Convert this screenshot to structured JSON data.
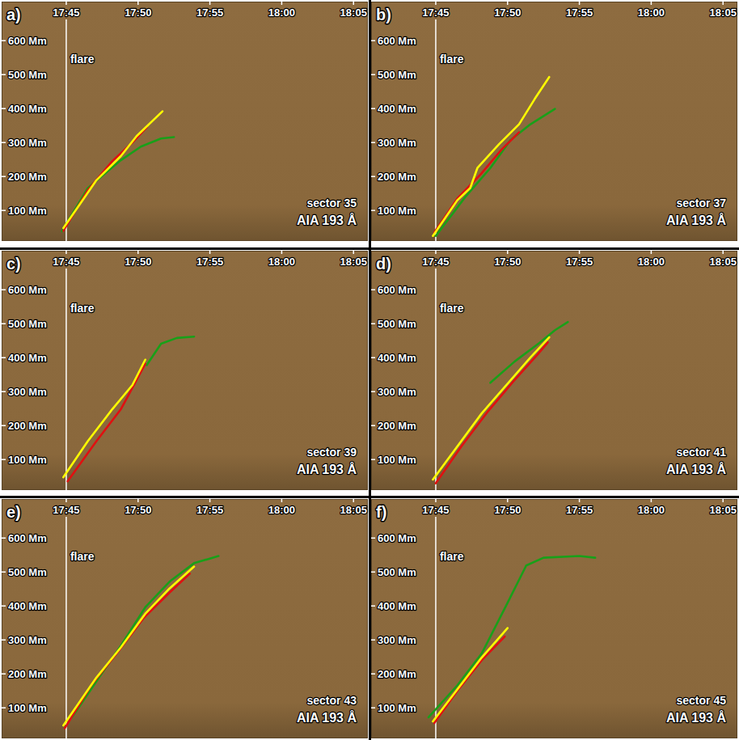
{
  "chart_data": [
    {
      "type": "line",
      "label": "a)",
      "title": "sector 35",
      "subtitle": "AIA 193 Å",
      "annotation": {
        "text": "flare",
        "x": 45
      },
      "xlim": [
        40.5,
        66
      ],
      "ylim": [
        10,
        715
      ],
      "xticks": [
        {
          "value": 45,
          "label": "17:45"
        },
        {
          "value": 50,
          "label": "17:50"
        },
        {
          "value": 55,
          "label": "17:55"
        },
        {
          "value": 60,
          "label": "18:00"
        },
        {
          "value": 65,
          "label": "18:05"
        }
      ],
      "yticks": [
        {
          "value": 100,
          "label": "100 Mm"
        },
        {
          "value": 200,
          "label": "200 Mm"
        },
        {
          "value": 300,
          "label": "300 Mm"
        },
        {
          "value": 400,
          "label": "400 Mm"
        },
        {
          "value": 500,
          "label": "500 Mm"
        },
        {
          "value": 600,
          "label": "600 Mm"
        }
      ],
      "series": [
        {
          "color": "#19a019",
          "x": [
            44.7,
            46.5,
            48.8,
            50.2,
            51.6,
            52.5
          ],
          "values": [
            39,
            166,
            248,
            288,
            312,
            316
          ]
        },
        {
          "color": "#e01010",
          "x": [
            44.8,
            46.5,
            48.2,
            49.6,
            50.6
          ],
          "values": [
            40,
            160,
            245,
            300,
            345
          ]
        },
        {
          "color": "#ffff00",
          "x": [
            44.8,
            47.1,
            48.8,
            49.9,
            51.7
          ],
          "values": [
            48,
            189,
            260,
            319,
            392
          ]
        }
      ]
    },
    {
      "type": "line",
      "label": "b)",
      "title": "sector 37",
      "subtitle": "AIA 193 Å",
      "annotation": {
        "text": "flare",
        "x": 45
      },
      "xlim": [
        40.5,
        66
      ],
      "ylim": [
        10,
        715
      ],
      "xticks": [
        {
          "value": 45,
          "label": "17:45"
        },
        {
          "value": 50,
          "label": "17:50"
        },
        {
          "value": 55,
          "label": "17:55"
        },
        {
          "value": 60,
          "label": "18:00"
        },
        {
          "value": 65,
          "label": "18:05"
        }
      ],
      "yticks": [
        {
          "value": 100,
          "label": "100 Mm"
        },
        {
          "value": 200,
          "label": "200 Mm"
        },
        {
          "value": 300,
          "label": "300 Mm"
        },
        {
          "value": 400,
          "label": "400 Mm"
        },
        {
          "value": 500,
          "label": "500 Mm"
        },
        {
          "value": 600,
          "label": "600 Mm"
        }
      ],
      "series": [
        {
          "color": "#19a019",
          "x": [
            45.0,
            47.1,
            48.8,
            50.2,
            51.6,
            53.3
          ],
          "values": [
            25,
            142,
            225,
            307,
            354,
            399
          ]
        },
        {
          "color": "#e01010",
          "x": [
            44.9,
            46.5,
            48.2,
            49.6,
            50.8
          ],
          "values": [
            35,
            135,
            210,
            280,
            330
          ]
        },
        {
          "color": "#ffff00",
          "x": [
            44.8,
            46.5,
            47.4,
            47.9,
            49.4,
            50.8,
            51.9,
            52.9
          ],
          "values": [
            25,
            130,
            166,
            225,
            295,
            354,
            429,
            493
          ]
        }
      ]
    },
    {
      "type": "line",
      "label": "c)",
      "title": "sector 39",
      "subtitle": "AIA 193 Å",
      "annotation": {
        "text": "flare",
        "x": 45
      },
      "xlim": [
        40.5,
        66
      ],
      "ylim": [
        10,
        715
      ],
      "xticks": [
        {
          "value": 45,
          "label": "17:45"
        },
        {
          "value": 50,
          "label": "17:50"
        },
        {
          "value": 55,
          "label": "17:55"
        },
        {
          "value": 60,
          "label": "18:00"
        },
        {
          "value": 65,
          "label": "18:05"
        }
      ],
      "yticks": [
        {
          "value": 100,
          "label": "100 Mm"
        },
        {
          "value": 200,
          "label": "200 Mm"
        },
        {
          "value": 300,
          "label": "300 Mm"
        },
        {
          "value": 400,
          "label": "400 Mm"
        },
        {
          "value": 500,
          "label": "500 Mm"
        },
        {
          "value": 600,
          "label": "600 Mm"
        }
      ],
      "series": [
        {
          "color": "#19a019",
          "x": [
            50.6,
            51.6,
            52.7,
            53.9
          ],
          "values": [
            378,
            441,
            458,
            462
          ]
        },
        {
          "color": "#e01010",
          "x": [
            45.1,
            47.1,
            48.8,
            50.5
          ],
          "values": [
            36,
            154,
            248,
            382
          ]
        },
        {
          "color": "#ffff00",
          "x": [
            44.8,
            46.5,
            48.2,
            49.6,
            50.5
          ],
          "values": [
            48,
            154,
            248,
            319,
            394
          ]
        }
      ]
    },
    {
      "type": "line",
      "label": "d)",
      "title": "sector 41",
      "subtitle": "AIA 193 Å",
      "annotation": {
        "text": "flare",
        "x": 45
      },
      "xlim": [
        40.5,
        66
      ],
      "ylim": [
        10,
        715
      ],
      "xticks": [
        {
          "value": 45,
          "label": "17:45"
        },
        {
          "value": 50,
          "label": "17:50"
        },
        {
          "value": 55,
          "label": "17:55"
        },
        {
          "value": 60,
          "label": "18:00"
        },
        {
          "value": 65,
          "label": "18:05"
        }
      ],
      "yticks": [
        {
          "value": 100,
          "label": "100 Mm"
        },
        {
          "value": 200,
          "label": "200 Mm"
        },
        {
          "value": 300,
          "label": "300 Mm"
        },
        {
          "value": 400,
          "label": "400 Mm"
        },
        {
          "value": 500,
          "label": "500 Mm"
        },
        {
          "value": 600,
          "label": "600 Mm"
        }
      ],
      "series": [
        {
          "color": "#19a019",
          "x": [
            48.8,
            50.5,
            52.2,
            53.3,
            54.2
          ],
          "values": [
            326,
            389,
            443,
            481,
            505
          ]
        },
        {
          "color": "#e01010",
          "x": [
            45.0,
            46.8,
            48.6,
            50.4,
            52.1,
            52.8
          ],
          "values": [
            30,
            140,
            240,
            330,
            410,
            445
          ]
        },
        {
          "color": "#ffff00",
          "x": [
            44.8,
            48.2,
            51.6,
            52.9
          ],
          "values": [
            41,
            236,
            401,
            460
          ]
        }
      ]
    },
    {
      "type": "line",
      "label": "e)",
      "title": "sector 43",
      "subtitle": "AIA 193 Å",
      "annotation": {
        "text": "flare",
        "x": 45
      },
      "xlim": [
        40.5,
        66
      ],
      "ylim": [
        10,
        715
      ],
      "xticks": [
        {
          "value": 45,
          "label": "17:45"
        },
        {
          "value": 50,
          "label": "17:50"
        },
        {
          "value": 55,
          "label": "17:55"
        },
        {
          "value": 60,
          "label": "18:00"
        },
        {
          "value": 65,
          "label": "18:05"
        }
      ],
      "yticks": [
        {
          "value": 100,
          "label": "100 Mm"
        },
        {
          "value": 200,
          "label": "200 Mm"
        },
        {
          "value": 300,
          "label": "300 Mm"
        },
        {
          "value": 400,
          "label": "400 Mm"
        },
        {
          "value": 500,
          "label": "500 Mm"
        },
        {
          "value": 600,
          "label": "600 Mm"
        }
      ],
      "series": [
        {
          "color": "#19a019",
          "x": [
            45.4,
            47.1,
            48.8,
            50.5,
            52.2,
            53.9,
            55.6
          ],
          "values": [
            72,
            178,
            283,
            396,
            472,
            526,
            547
          ]
        },
        {
          "color": "#e01010",
          "x": [
            44.9,
            46.8,
            48.6,
            50.4,
            52.2,
            53.6
          ],
          "values": [
            40,
            170,
            265,
            365,
            440,
            495
          ]
        },
        {
          "color": "#ffff00",
          "x": [
            44.8,
            47.1,
            48.8,
            50.5,
            52.2,
            53.9
          ],
          "values": [
            48,
            189,
            278,
            377,
            452,
            516
          ]
        }
      ]
    },
    {
      "type": "line",
      "label": "f)",
      "title": "sector 45",
      "subtitle": "AIA 193 Å",
      "annotation": {
        "text": "flare",
        "x": 45
      },
      "xlim": [
        40.5,
        66
      ],
      "ylim": [
        10,
        715
      ],
      "xticks": [
        {
          "value": 45,
          "label": "17:45"
        },
        {
          "value": 50,
          "label": "17:50"
        },
        {
          "value": 55,
          "label": "17:55"
        },
        {
          "value": 60,
          "label": "18:00"
        },
        {
          "value": 65,
          "label": "18:05"
        }
      ],
      "yticks": [
        {
          "value": 100,
          "label": "100 Mm"
        },
        {
          "value": 200,
          "label": "200 Mm"
        },
        {
          "value": 300,
          "label": "300 Mm"
        },
        {
          "value": 400,
          "label": "400 Mm"
        },
        {
          "value": 500,
          "label": "500 Mm"
        },
        {
          "value": 600,
          "label": "600 Mm"
        }
      ],
      "series": [
        {
          "color": "#19a019",
          "x": [
            44.5,
            46.5,
            48.2,
            49.9,
            51.3,
            52.5,
            55.0,
            56.1
          ],
          "values": [
            72,
            166,
            260,
            401,
            519,
            542,
            547,
            542
          ]
        },
        {
          "color": "#e01010",
          "x": [
            44.9,
            46.5,
            48.2,
            49.8
          ],
          "values": [
            55,
            150,
            240,
            310
          ]
        },
        {
          "color": "#ffff00",
          "x": [
            44.8,
            46.5,
            48.2,
            50.0
          ],
          "values": [
            60,
            154,
            248,
            335
          ]
        }
      ]
    }
  ]
}
